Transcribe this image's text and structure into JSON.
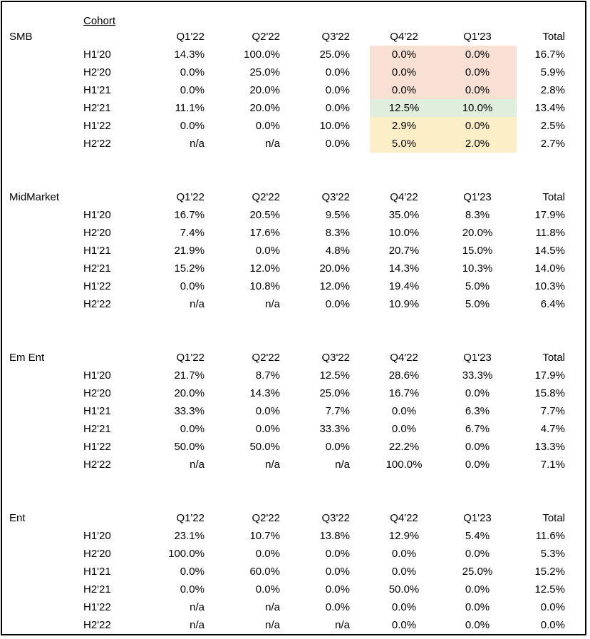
{
  "header": {
    "cohort_label": "Cohort"
  },
  "colors": {
    "red": "#f8e0d4",
    "green": "#dfeedd",
    "yellow": "#fcefc8"
  },
  "sections": [
    {
      "segment": "SMB",
      "columns": [
        "Q1'22",
        "Q2'22",
        "Q3'22",
        "Q4'22",
        "Q1'23",
        "Total"
      ],
      "rows": [
        {
          "cohort": "H1'20",
          "values": [
            "14.3%",
            "100.0%",
            "25.0%",
            "0.0%",
            "0.0%",
            "16.7%"
          ]
        },
        {
          "cohort": "H2'20",
          "values": [
            "0.0%",
            "25.0%",
            "0.0%",
            "0.0%",
            "0.0%",
            "5.9%"
          ]
        },
        {
          "cohort": "H1'21",
          "values": [
            "0.0%",
            "20.0%",
            "0.0%",
            "0.0%",
            "0.0%",
            "2.8%"
          ]
        },
        {
          "cohort": "H2'21",
          "values": [
            "11.1%",
            "20.0%",
            "0.0%",
            "12.5%",
            "10.0%",
            "13.4%"
          ]
        },
        {
          "cohort": "H1'22",
          "values": [
            "0.0%",
            "0.0%",
            "10.0%",
            "2.9%",
            "0.0%",
            "2.5%"
          ]
        },
        {
          "cohort": "H2'22",
          "values": [
            "n/a",
            "n/a",
            "0.0%",
            "5.0%",
            "2.0%",
            "2.7%"
          ]
        }
      ]
    },
    {
      "segment": "MidMarket",
      "columns": [
        "Q1'22",
        "Q2'22",
        "Q3'22",
        "Q4'22",
        "Q1'23",
        "Total"
      ],
      "rows": [
        {
          "cohort": "H1'20",
          "values": [
            "16.7%",
            "20.5%",
            "9.5%",
            "35.0%",
            "8.3%",
            "17.9%"
          ]
        },
        {
          "cohort": "H2'20",
          "values": [
            "7.4%",
            "17.6%",
            "8.3%",
            "10.0%",
            "20.0%",
            "11.8%"
          ]
        },
        {
          "cohort": "H1'21",
          "values": [
            "21.9%",
            "0.0%",
            "4.8%",
            "20.7%",
            "15.0%",
            "14.5%"
          ]
        },
        {
          "cohort": "H2'21",
          "values": [
            "15.2%",
            "12.0%",
            "20.0%",
            "14.3%",
            "10.3%",
            "14.0%"
          ]
        },
        {
          "cohort": "H1'22",
          "values": [
            "0.0%",
            "10.8%",
            "12.0%",
            "19.4%",
            "5.0%",
            "10.3%"
          ]
        },
        {
          "cohort": "H2'22",
          "values": [
            "n/a",
            "n/a",
            "0.0%",
            "10.9%",
            "5.0%",
            "6.4%"
          ]
        }
      ]
    },
    {
      "segment": "Em Ent",
      "columns": [
        "Q1'22",
        "Q2'22",
        "Q3'22",
        "Q4'22",
        "Q1'23",
        "Total"
      ],
      "rows": [
        {
          "cohort": "H1'20",
          "values": [
            "21.7%",
            "8.7%",
            "12.5%",
            "28.6%",
            "33.3%",
            "17.9%"
          ]
        },
        {
          "cohort": "H2'20",
          "values": [
            "20.0%",
            "14.3%",
            "25.0%",
            "16.7%",
            "0.0%",
            "15.8%"
          ]
        },
        {
          "cohort": "H1'21",
          "values": [
            "33.3%",
            "0.0%",
            "7.7%",
            "0.0%",
            "6.3%",
            "7.7%"
          ]
        },
        {
          "cohort": "H2'21",
          "values": [
            "0.0%",
            "0.0%",
            "33.3%",
            "0.0%",
            "6.7%",
            "4.7%"
          ]
        },
        {
          "cohort": "H1'22",
          "values": [
            "50.0%",
            "50.0%",
            "0.0%",
            "22.2%",
            "0.0%",
            "13.3%"
          ]
        },
        {
          "cohort": "H2'22",
          "values": [
            "n/a",
            "n/a",
            "n/a",
            "100.0%",
            "0.0%",
            "7.1%"
          ]
        }
      ]
    },
    {
      "segment": "Ent",
      "columns": [
        "Q1'22",
        "Q2'22",
        "Q3'22",
        "Q4'22",
        "Q1'23",
        "Total"
      ],
      "rows": [
        {
          "cohort": "H1'20",
          "values": [
            "23.1%",
            "10.7%",
            "13.8%",
            "12.9%",
            "5.4%",
            "11.6%"
          ]
        },
        {
          "cohort": "H2'20",
          "values": [
            "100.0%",
            "0.0%",
            "0.0%",
            "0.0%",
            "0.0%",
            "5.3%"
          ]
        },
        {
          "cohort": "H1'21",
          "values": [
            "0.0%",
            "60.0%",
            "0.0%",
            "0.0%",
            "25.0%",
            "15.2%"
          ]
        },
        {
          "cohort": "H2'21",
          "values": [
            "0.0%",
            "0.0%",
            "0.0%",
            "50.0%",
            "0.0%",
            "12.5%"
          ]
        },
        {
          "cohort": "H1'22",
          "values": [
            "n/a",
            "n/a",
            "0.0%",
            "0.0%",
            "0.0%",
            "0.0%"
          ]
        },
        {
          "cohort": "H2'22",
          "values": [
            "n/a",
            "n/a",
            "n/a",
            "0.0%",
            "0.0%",
            "0.0%"
          ]
        }
      ]
    }
  ]
}
